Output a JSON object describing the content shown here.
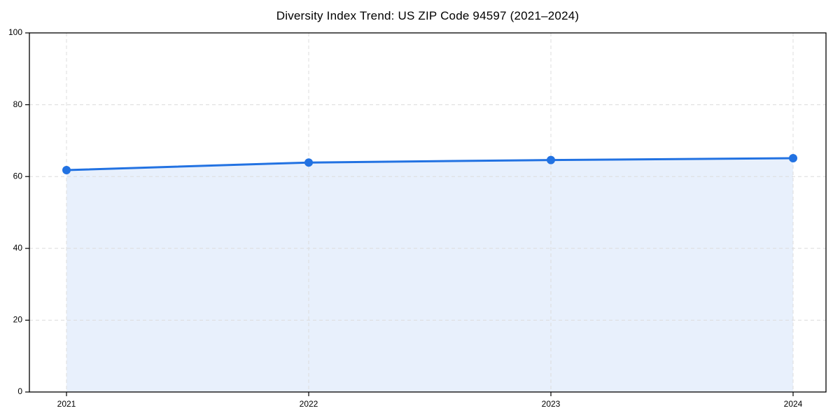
{
  "chart_data": {
    "type": "area",
    "title": "Diversity Index Trend: US ZIP Code 94597 (2021–2024)",
    "categories": [
      "2021",
      "2022",
      "2023",
      "2024"
    ],
    "series": [
      {
        "name": "Diversity Index",
        "values": [
          61.8,
          63.9,
          64.6,
          65.1
        ]
      }
    ],
    "xlabel": "",
    "ylabel": "",
    "ylim": [
      0,
      100
    ],
    "yticks": [
      0,
      20,
      40,
      60,
      80,
      100
    ],
    "grid": true,
    "grid_style": "dashed",
    "legend_position": "none",
    "marker": "circle",
    "colors": {
      "line": "#2272e2",
      "marker": "#2272e2",
      "area_fill": "#e8f0fc",
      "grid": "#dcdcdc",
      "axis": "#000000",
      "tick_text": "#000000",
      "title_text": "#000000",
      "background": "#ffffff"
    }
  }
}
